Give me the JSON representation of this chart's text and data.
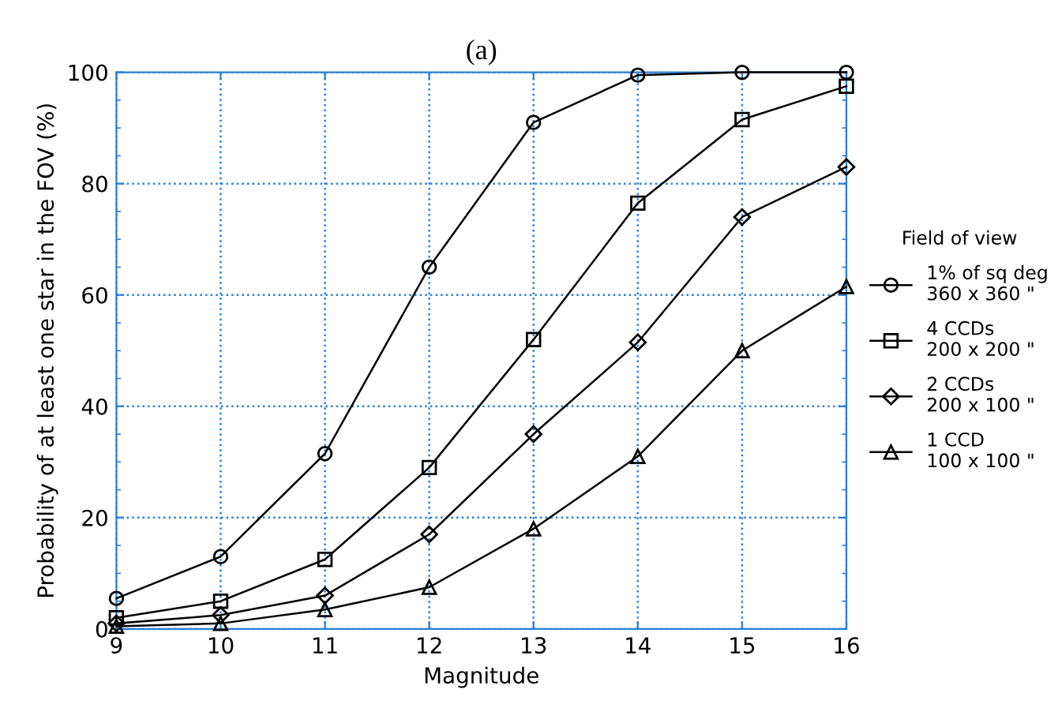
{
  "chart_data": {
    "type": "line",
    "title": "(a)",
    "xlabel": "Magnitude",
    "ylabel": "Probability of at least one star in the FOV (%)",
    "legend_title": "Field of view",
    "x": [
      9,
      10,
      11,
      12,
      13,
      14,
      15,
      16
    ],
    "series": [
      {
        "name": "1% of sq deg\n360 x 360 \"",
        "color": "#000000",
        "marker": "circle",
        "values": [
          5.5,
          13,
          31.5,
          65,
          91,
          99.5,
          100,
          100
        ]
      },
      {
        "name": "4 CCDs\n200 x 200 \"",
        "color": "#000000",
        "marker": "square",
        "values": [
          2,
          5,
          12.5,
          29,
          52,
          76.5,
          91.5,
          97.5
        ]
      },
      {
        "name": "2 CCDs\n200 x 100 \"",
        "color": "#000000",
        "marker": "diamond",
        "values": [
          1,
          2.5,
          6,
          17,
          35,
          51.5,
          74,
          83
        ]
      },
      {
        "name": "1 CCD\n100 x 100 \"",
        "color": "#000000",
        "marker": "triangle",
        "values": [
          0.5,
          1,
          3.5,
          7.5,
          18,
          31,
          50,
          61.5
        ]
      }
    ],
    "xlim": [
      9,
      16
    ],
    "xticks": [
      9,
      10,
      11,
      12,
      13,
      14,
      15,
      16
    ],
    "ylim": [
      0,
      100
    ],
    "yticks": [
      0,
      20,
      40,
      60,
      80,
      100
    ],
    "grid": true,
    "legend": "right",
    "line_style": "solid"
  }
}
